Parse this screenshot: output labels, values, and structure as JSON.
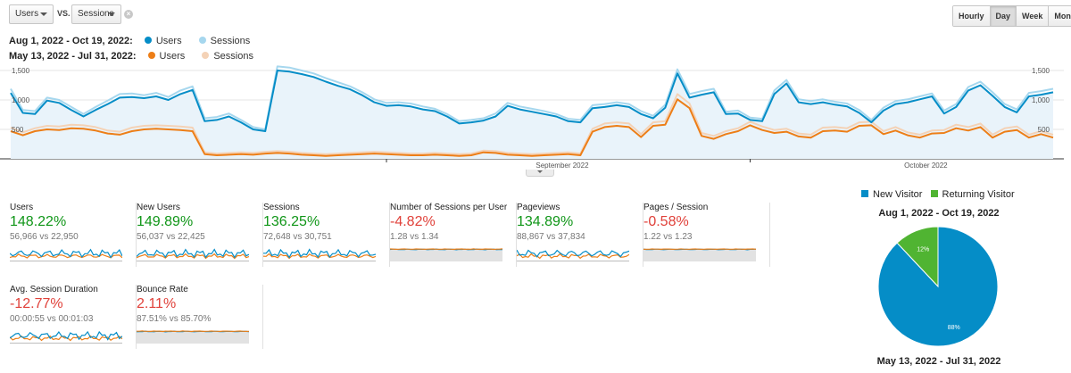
{
  "controls": {
    "metric1": "Users",
    "vs": "VS.",
    "metric2": "Sessions",
    "clear": "×",
    "granularity": [
      "Hourly",
      "Day",
      "Week",
      "Month"
    ],
    "active_granularity": "Day"
  },
  "legend": {
    "current": {
      "range": "Aug 1, 2022 - Oct 19, 2022:",
      "users": "Users",
      "sessions": "Sessions"
    },
    "previous": {
      "range": "May 13, 2022 - Jul 31, 2022:",
      "users": "Users",
      "sessions": "Sessions"
    }
  },
  "colors": {
    "current_users": "#058dc7",
    "current_sessions": "#a6d7ee",
    "previous_users": "#ed7e17",
    "previous_sessions": "#f4d2b6",
    "positive": "#109618",
    "negative": "#e0413a",
    "new_visitor": "#058dc7",
    "returning_visitor": "#50b432"
  },
  "chart_data": {
    "type": "line",
    "y_ticks": [
      "1,500",
      "1,000",
      "500"
    ],
    "ylim": [
      0,
      1500
    ],
    "x_tick_labels": [
      "September 2022",
      "October 2022"
    ],
    "grid": true,
    "series": [
      {
        "name": "Users",
        "period": "Aug 1, 2022 - Oct 19, 2022",
        "values": [
          1120,
          780,
          760,
          990,
          950,
          830,
          720,
          830,
          930,
          1040,
          1050,
          1030,
          1060,
          1000,
          1100,
          1170,
          640,
          660,
          720,
          620,
          500,
          470,
          1500,
          1480,
          1440,
          1390,
          1310,
          1240,
          1180,
          1080,
          960,
          900,
          910,
          890,
          840,
          810,
          720,
          600,
          620,
          650,
          720,
          900,
          840,
          800,
          760,
          720,
          640,
          620,
          860,
          880,
          910,
          880,
          760,
          690,
          870,
          1450,
          1040,
          1090,
          1130,
          760,
          770,
          660,
          640,
          1100,
          1280,
          960,
          930,
          960,
          920,
          890,
          780,
          620,
          820,
          930,
          960,
          1010,
          1060,
          770,
          880,
          1160,
          1250,
          1070,
          880,
          790,
          1060,
          1090,
          1130
        ]
      },
      {
        "name": "Sessions",
        "period": "Aug 1, 2022 - Oct 19, 2022",
        "values": [
          1190,
          830,
          810,
          1040,
          1000,
          880,
          760,
          880,
          990,
          1100,
          1110,
          1080,
          1120,
          1050,
          1160,
          1230,
          690,
          710,
          770,
          660,
          540,
          500,
          1570,
          1550,
          1500,
          1450,
          1370,
          1300,
          1230,
          1130,
          1010,
          950,
          960,
          940,
          890,
          850,
          760,
          640,
          660,
          690,
          770,
          950,
          890,
          850,
          810,
          760,
          680,
          660,
          910,
          930,
          960,
          930,
          810,
          730,
          920,
          1520,
          1100,
          1150,
          1190,
          800,
          820,
          700,
          680,
          1160,
          1340,
          1010,
          980,
          1010,
          970,
          940,
          830,
          660,
          870,
          980,
          1010,
          1060,
          1110,
          820,
          930,
          1220,
          1310,
          1130,
          930,
          840,
          1120,
          1150,
          1190
        ]
      },
      {
        "name": "Users",
        "period": "May 13, 2022 - Jul 31, 2022",
        "values": [
          470,
          400,
          470,
          500,
          490,
          520,
          510,
          480,
          430,
          410,
          470,
          500,
          510,
          500,
          490,
          470,
          80,
          60,
          70,
          80,
          70,
          90,
          100,
          90,
          70,
          60,
          50,
          60,
          70,
          80,
          90,
          80,
          70,
          60,
          60,
          70,
          60,
          50,
          60,
          110,
          100,
          70,
          60,
          50,
          60,
          70,
          80,
          60,
          460,
          540,
          560,
          540,
          370,
          560,
          580,
          1010,
          860,
          390,
          340,
          420,
          470,
          570,
          490,
          440,
          460,
          380,
          360,
          470,
          480,
          460,
          560,
          570,
          420,
          480,
          400,
          360,
          430,
          440,
          520,
          480,
          540,
          360,
          460,
          490,
          360,
          420,
          360
        ]
      },
      {
        "name": "Sessions",
        "period": "May 13, 2022 - Jul 31, 2022",
        "values": [
          530,
          450,
          520,
          560,
          550,
          580,
          570,
          540,
          480,
          460,
          530,
          560,
          570,
          560,
          550,
          530,
          110,
          90,
          100,
          110,
          100,
          120,
          130,
          120,
          100,
          90,
          80,
          90,
          100,
          110,
          120,
          110,
          100,
          90,
          90,
          100,
          90,
          80,
          90,
          140,
          130,
          100,
          90,
          80,
          90,
          100,
          110,
          90,
          510,
          600,
          620,
          600,
          420,
          620,
          640,
          1100,
          940,
          440,
          390,
          470,
          520,
          630,
          550,
          490,
          510,
          430,
          410,
          530,
          540,
          520,
          620,
          630,
          470,
          540,
          450,
          410,
          480,
          490,
          580,
          540,
          600,
          410,
          520,
          550,
          410,
          470,
          410
        ]
      }
    ]
  },
  "metrics": [
    {
      "label": "Users",
      "change": "148.22%",
      "trend": "up",
      "compare": "56,966 vs 22,950",
      "spark": "wavy"
    },
    {
      "label": "New Users",
      "change": "149.89%",
      "trend": "up",
      "compare": "56,037 vs 22,425",
      "spark": "wavy"
    },
    {
      "label": "Sessions",
      "change": "136.25%",
      "trend": "up",
      "compare": "72,648 vs 30,751",
      "spark": "wavy"
    },
    {
      "label": "Number of Sessions per User",
      "change": "-4.82%",
      "trend": "down",
      "compare": "1.28 vs 1.34",
      "spark": "flat"
    },
    {
      "label": "Pageviews",
      "change": "134.89%",
      "trend": "up",
      "compare": "88,867 vs 37,834",
      "spark": "wavy"
    },
    {
      "label": "Pages / Session",
      "change": "-0.58%",
      "trend": "down",
      "compare": "1.22 vs 1.23",
      "spark": "flat"
    },
    {
      "label": "Avg. Session Duration",
      "change": "-12.77%",
      "trend": "down",
      "compare": "00:00:55 vs 00:01:03",
      "spark": "wavy"
    },
    {
      "label": "Bounce Rate",
      "change": "2.11%",
      "trend": "down",
      "compare": "87.51% vs 85.70%",
      "spark": "flat"
    }
  ],
  "pie": {
    "legend": [
      "New Visitor",
      "Returning Visitor"
    ],
    "title_top": "Aug 1, 2022 - Oct 19, 2022",
    "title_bottom": "May 13, 2022 - Jul 31, 2022",
    "slices": [
      {
        "name": "New Visitor",
        "value": 88,
        "label": "88%"
      },
      {
        "name": "Returning Visitor",
        "value": 12,
        "label": "12%"
      }
    ]
  }
}
